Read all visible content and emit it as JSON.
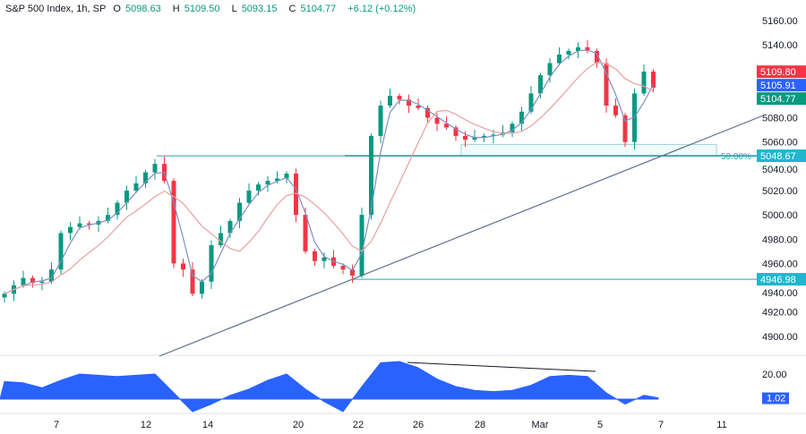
{
  "header": {
    "symbol": "S&P 500 Index, 1h, SP",
    "open_label": "O",
    "open": "5098.63",
    "high_label": "H",
    "high": "5109.50",
    "low_label": "L",
    "low": "5093.15",
    "close_label": "C",
    "close": "5104.77",
    "change": "+6.12 (+0.12%)"
  },
  "colors": {
    "up": "#089981",
    "down": "#f23645",
    "fast_ma": "#7b8fc7",
    "slow_ma": "#e8a0a0",
    "level": "#22aab5",
    "trend": "#5b6f8f",
    "osc": "#2962ff"
  },
  "price_axis": {
    "ticks": [
      "5160.00",
      "5140.00",
      "5080.00",
      "5060.00",
      "5040.00",
      "5020.00",
      "5000.00",
      "4980.00",
      "4960.00",
      "4940.00",
      "4920.00",
      "4900.00"
    ],
    "tick_values": [
      5160,
      5140,
      5080,
      5060,
      5040,
      5020,
      5000,
      4980,
      4960,
      4940,
      4920,
      4900
    ]
  },
  "price_badges": [
    {
      "value": "5109.80",
      "price": 5109.8,
      "color": "#f23645"
    },
    {
      "value": "5105.91",
      "price": 5105.91,
      "color": "#2962ff"
    },
    {
      "value": "5104.77",
      "price": 5104.77,
      "color": "#089981"
    },
    {
      "value": "5048.67",
      "price": 5048.67,
      "color": "#22b5cf"
    },
    {
      "value": "4946.98",
      "price": 4946.98,
      "color": "#22b5cf"
    }
  ],
  "fib_label": "50.00%",
  "osc_axis": {
    "tick": "20.00",
    "tick_value": 20,
    "badge": "1.02"
  },
  "time_axis": [
    "7",
    "12",
    "14",
    "20",
    "22",
    "26",
    "28",
    "Mar",
    "5",
    "7",
    "11"
  ],
  "closes": [
    4935,
    4942,
    4948,
    4944,
    4945,
    4955,
    4985,
    4990,
    4993,
    4992,
    4995,
    5000,
    5010,
    5020,
    5026,
    5035,
    5042,
    5028,
    4960,
    4955,
    4935,
    4945,
    4975,
    4985,
    4995,
    5010,
    5020,
    5025,
    5028,
    5030,
    5034,
    5000,
    4970,
    4962,
    4965,
    4958,
    4955,
    4950,
    5000,
    5065,
    5090,
    5098,
    5095,
    5090,
    5088,
    5080,
    5075,
    5072,
    5065,
    5062,
    5064,
    5065,
    5066,
    5068,
    5075,
    5085,
    5100,
    5115,
    5125,
    5132,
    5135,
    5138,
    5135,
    5125,
    5090,
    5082,
    5060,
    5100,
    5118,
    5104.77
  ],
  "oscillator": [
    14,
    13,
    9,
    15,
    20,
    19,
    18,
    19,
    20,
    5,
    -10,
    -4,
    3,
    8,
    15,
    20,
    8,
    -2,
    -10,
    10,
    29,
    30,
    25,
    16,
    10,
    7,
    6,
    7,
    11,
    18,
    19,
    18,
    5,
    -4,
    3,
    1
  ]
}
